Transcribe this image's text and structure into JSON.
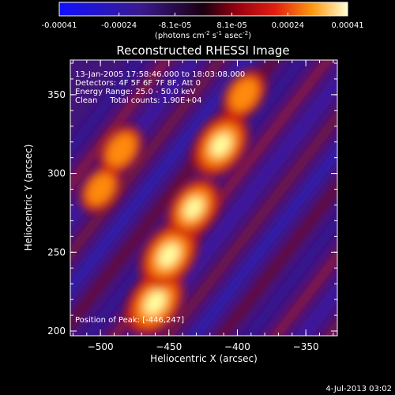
{
  "chart_data": {
    "type": "heatmap",
    "title": "Reconstructed RHESSI Image",
    "colorbar": {
      "range": [
        -0.00041,
        0.00041
      ],
      "tick_labels": [
        "-0.00041",
        "-0.00024",
        "-8.1e-05",
        "8.1e-05",
        "0.00024",
        "0.00041"
      ],
      "tick_values": [
        -0.00041,
        -0.00024,
        -8.1e-05,
        8.1e-05,
        0.00024,
        0.00041
      ],
      "unit_parts": {
        "open": "(photons cm",
        "exp1": "-2",
        "mid1": " s",
        "exp2": "-1",
        "mid2": " asec",
        "exp3": "-2",
        "close": ")"
      }
    },
    "xlabel": "Heliocentric X (arcsec)",
    "ylabel": "Heliocentric Y (arcsec)",
    "xlim": [
      -522,
      -327
    ],
    "ylim": [
      197,
      372
    ],
    "x_ticks": [
      -500,
      -450,
      -400,
      -350
    ],
    "y_ticks": [
      200,
      250,
      300,
      350
    ],
    "x_tick_labels": [
      "−500",
      "−450",
      "−400",
      "−350"
    ],
    "y_tick_labels": [
      "200",
      "250",
      "300",
      "350"
    ],
    "annotations": [
      "13-Jan-2005 17:58:46.000 to 18:03:08.000",
      "Detectors: 4F 5F 6F 7F 8F, Att 0",
      "Energy Range: 25.0 - 50.0 keV",
      "Clean     Total counts: 1.90E+04",
      "Position of Peak: [-446,247]"
    ],
    "peak_position": [
      -446,
      247
    ],
    "source_ridge": [
      {
        "x": -460,
        "y": 218,
        "peak": 1.0
      },
      {
        "x": -450,
        "y": 248,
        "peak": 1.0
      },
      {
        "x": -432,
        "y": 278,
        "peak": 0.85
      },
      {
        "x": -412,
        "y": 318,
        "peak": 0.95
      },
      {
        "x": -395,
        "y": 350,
        "peak": 0.6
      },
      {
        "x": -500,
        "y": 290,
        "peak": 0.55
      },
      {
        "x": -485,
        "y": 315,
        "peak": 0.6
      }
    ],
    "timestamp": "4-Jul-2013 03:02"
  }
}
